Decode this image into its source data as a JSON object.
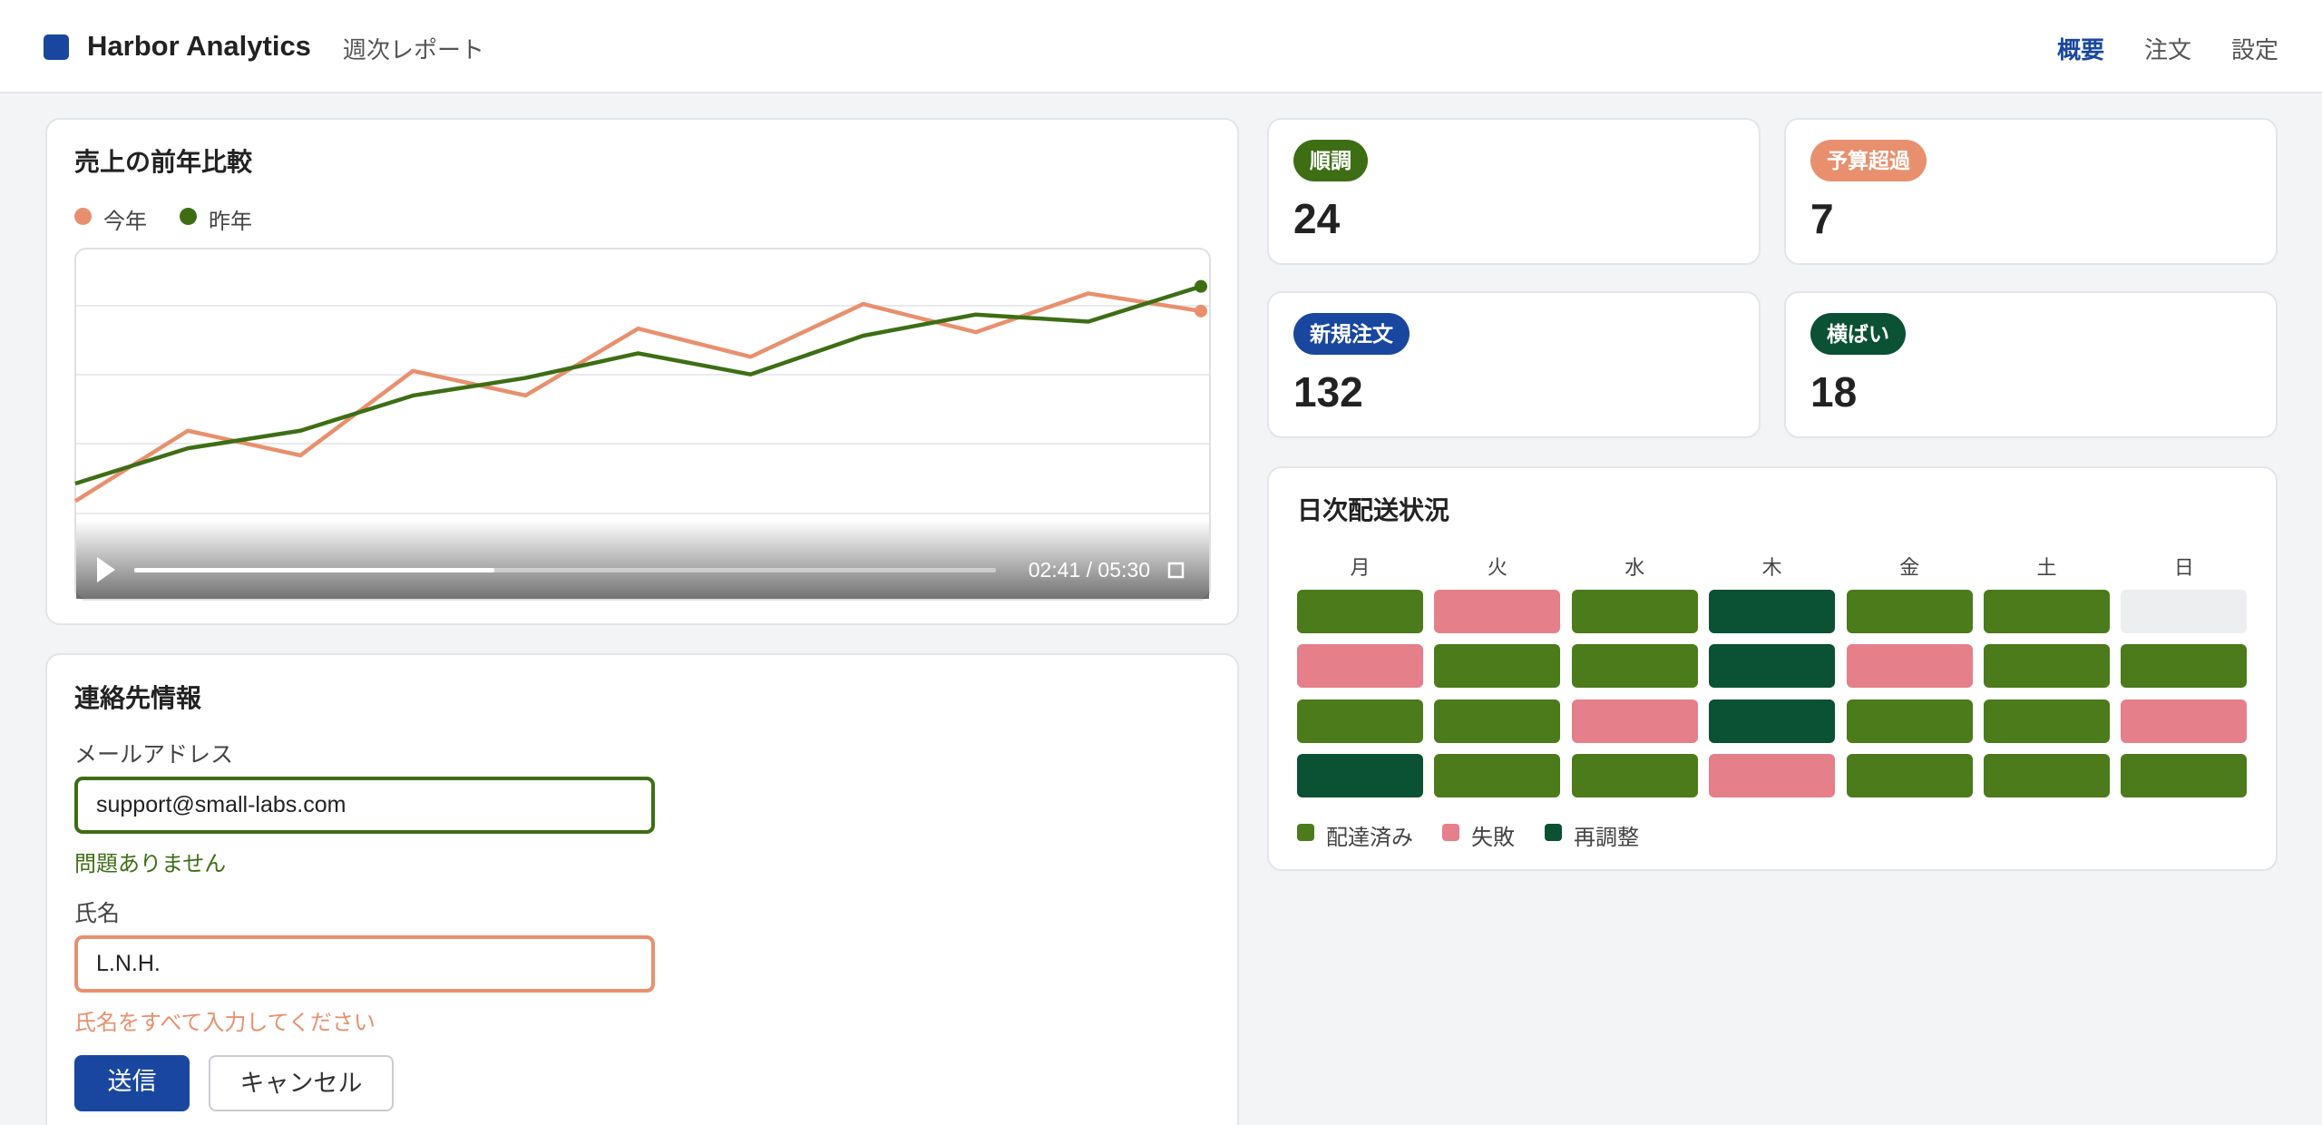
{
  "header": {
    "title": "Harbor Analytics",
    "subtitle": "週次レポート",
    "nav": [
      "概要",
      "注文",
      "設定"
    ],
    "active_nav": 0
  },
  "chart_data": {
    "type": "line",
    "title": "売上の前年比較",
    "categories": [
      null,
      null,
      null,
      null,
      null,
      null,
      null,
      null,
      null,
      null,
      null
    ],
    "ylim": [
      0,
      100
    ],
    "grid": true,
    "series": [
      {
        "name": "今年",
        "color": "#e8906e",
        "values": [
          28,
          48,
          41,
          65,
          58,
          77,
          69,
          84,
          76,
          87,
          82
        ]
      },
      {
        "name": "昨年",
        "color": "#3d6e14",
        "values": [
          33,
          43,
          48,
          58,
          63,
          70,
          64,
          75,
          81,
          79,
          89
        ]
      }
    ]
  },
  "player": {
    "time": "02:41 / 05:30"
  },
  "stats": [
    {
      "label": "順調",
      "value": 24,
      "color": "#3d6e14"
    },
    {
      "label": "予算超過",
      "value": 7,
      "color": "#e8906e"
    },
    {
      "label": "新規注文",
      "value": 132,
      "color": "#1947a0"
    },
    {
      "label": "横ばい",
      "value": 18,
      "color": "#0b5134"
    }
  ],
  "heatmap": {
    "title": "日次配送状況",
    "days": [
      "月",
      "火",
      "水",
      "木",
      "金",
      "土",
      "日"
    ],
    "statuses": [
      {
        "name": "配達済み",
        "color": "#4b7b1a"
      },
      {
        "name": "失敗",
        "color": "#e57f8a"
      },
      {
        "name": "再調整",
        "color": "#0b5134"
      }
    ],
    "empty_color": "#eceeef",
    "cells": [
      [
        0,
        1,
        0,
        2,
        0,
        0,
        null
      ],
      [
        1,
        0,
        0,
        2,
        1,
        0,
        0
      ],
      [
        0,
        0,
        1,
        2,
        0,
        0,
        1
      ],
      [
        2,
        0,
        0,
        1,
        0,
        0,
        0
      ]
    ]
  },
  "form": {
    "title": "連絡先情報",
    "fields": [
      {
        "label": "メールアドレス",
        "value": "support@small-labs.com",
        "message": "問題ありません",
        "state": "valid"
      },
      {
        "label": "氏名",
        "value": "L.N.H.",
        "message": "氏名をすべて入力してください",
        "state": "error"
      }
    ],
    "buttons": [
      "送信",
      "キャンセル"
    ]
  }
}
